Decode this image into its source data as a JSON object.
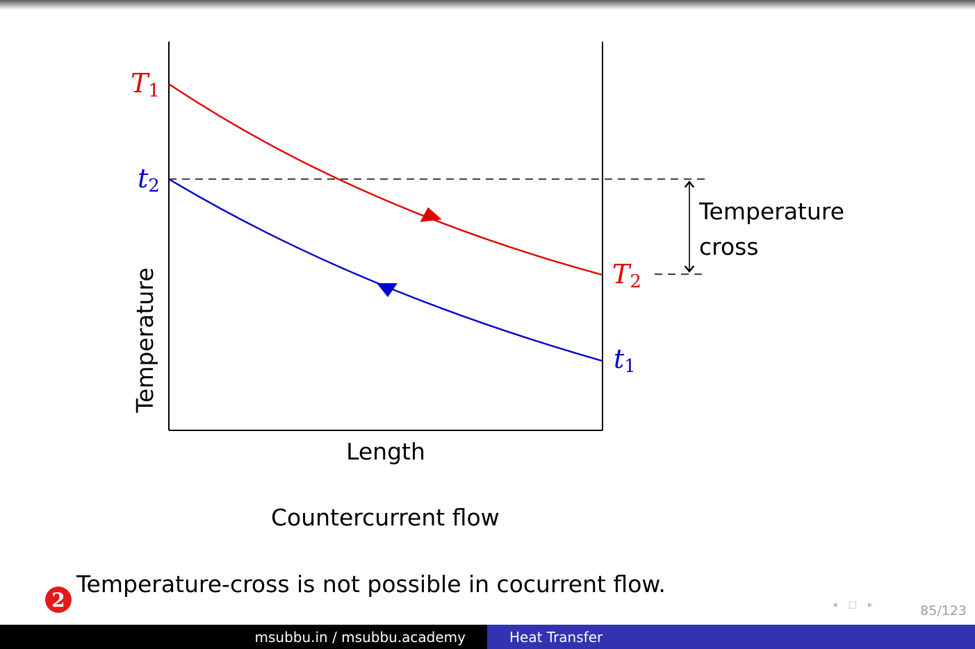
{
  "diagram": {
    "y_axis_label": "Temperature",
    "x_axis_label": "Length",
    "cross_label_line1": "Temperature",
    "cross_label_line2": "cross",
    "hot_inlet_label": "T",
    "hot_inlet_sub": "1",
    "hot_outlet_label": "T",
    "hot_outlet_sub": "2",
    "cold_inlet_label": "t",
    "cold_inlet_sub": "1",
    "cold_outlet_label": "t",
    "cold_outlet_sub": "2",
    "hot_color": "#e00000",
    "cold_color": "#0000d0"
  },
  "caption": "Countercurrent flow",
  "note": "Temperature-cross is not possible in cocurrent flow.",
  "nav_symbols": "◂ □ ▸",
  "page_number": "85/123",
  "footer": {
    "left": "msubbu.in / msubbu.academy",
    "right": "Heat Transfer"
  }
}
